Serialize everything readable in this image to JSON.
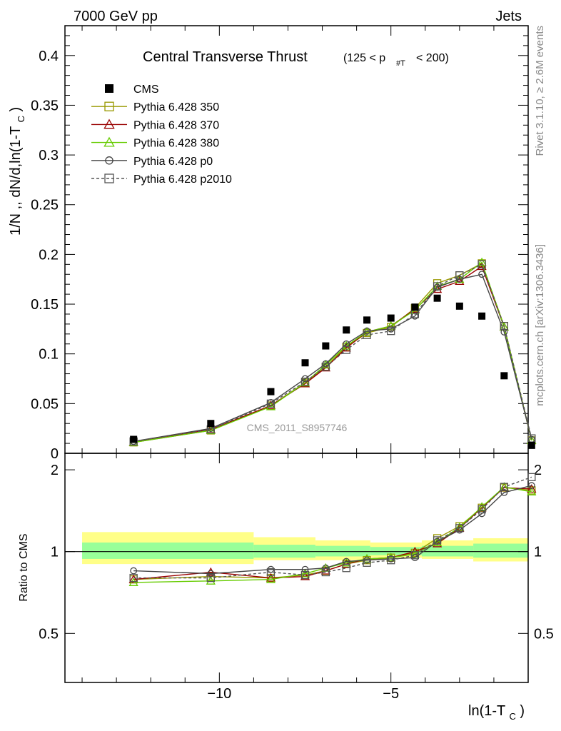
{
  "header": {
    "left": "7000 GeV pp",
    "right": "Jets"
  },
  "side_labels": {
    "rivet": "Rivet 3.1.10, ≥ 2.6M events",
    "source": "mcplots.cern.ch [arXiv:1306.3436]"
  },
  "watermark": "CMS_2011_S8957746",
  "chart_data": {
    "type": "scatter",
    "title": "Central Transverse Thrust",
    "title_cut": "(125 < p",
    "title_cut_sub": "#T",
    "title_cut_end": "< 200)",
    "ylabel_top": "1/N ,, dN/d,ln(1-T",
    "ylabel_top_sub": "C",
    "ylabel_top_end": ")",
    "ylabel_ratio": "Ratio to CMS",
    "xlabel": "ln(1-T",
    "xlabel_sub": "C",
    "xlabel_end": ")",
    "xlim": [
      -14.5,
      -1.0
    ],
    "ylim_top": [
      0,
      0.43
    ],
    "ylim_ratio": [
      0.33,
      2.3
    ],
    "x_ticks": [
      -10,
      -5
    ],
    "x_tick_labels": [
      "−10",
      "−5"
    ],
    "y_ticks_top": [
      0,
      0.05,
      0.1,
      0.15,
      0.2,
      0.25,
      0.3,
      0.35,
      0.4
    ],
    "y_tick_labels_top": [
      "0",
      "0.05",
      "0.1",
      "0.15",
      "0.2",
      "0.25",
      "0.3",
      "0.35",
      "0.4"
    ],
    "y_ticks_ratio": [
      0.5,
      1,
      2
    ],
    "y_tick_labels_ratio": [
      "0.5",
      "1",
      "2"
    ],
    "legend_position": "top-left",
    "x": [
      -12.5,
      -10.25,
      -8.5,
      -7.5,
      -6.9,
      -6.3,
      -5.7,
      -5.0,
      -4.3,
      -3.65,
      -3.0,
      -2.35,
      -1.7,
      -0.9
    ],
    "series": [
      {
        "name": "CMS",
        "marker": "filled-square",
        "color": "#000000",
        "values": [
          0.014,
          0.03,
          0.062,
          0.091,
          0.108,
          0.124,
          0.134,
          0.136,
          0.147,
          0.156,
          0.148,
          0.138,
          0.078,
          0.008
        ],
        "ratio": [
          1,
          1,
          1,
          1,
          1,
          1,
          1,
          1,
          1,
          1,
          1,
          1,
          1,
          1
        ]
      },
      {
        "name": "Pythia 6.428 350",
        "marker": "open-square",
        "color": "#999900",
        "values": [
          0.011,
          0.023,
          0.048,
          0.071,
          0.087,
          0.107,
          0.121,
          0.127,
          0.146,
          0.171,
          0.179,
          0.191,
          0.128,
          0.013
        ],
        "ratio": [
          0.79,
          0.81,
          0.8,
          0.82,
          0.85,
          0.9,
          0.93,
          0.95,
          0.99,
          1.12,
          1.24,
          1.45,
          1.72,
          1.68
        ]
      },
      {
        "name": "Pythia 6.428 370",
        "marker": "open-triangle",
        "color": "#990000",
        "values": [
          0.011,
          0.024,
          0.048,
          0.07,
          0.086,
          0.106,
          0.122,
          0.128,
          0.145,
          0.165,
          0.173,
          0.188,
          0.127,
          0.013
        ],
        "ratio": [
          0.79,
          0.84,
          0.8,
          0.81,
          0.85,
          0.9,
          0.94,
          0.95,
          1.0,
          1.07,
          1.22,
          1.45,
          1.72,
          1.7
        ]
      },
      {
        "name": "Pythia 6.428 380",
        "marker": "open-triangle",
        "color": "#66cc00",
        "values": [
          0.011,
          0.023,
          0.047,
          0.071,
          0.089,
          0.108,
          0.122,
          0.128,
          0.144,
          0.168,
          0.175,
          0.192,
          0.127,
          0.013
        ],
        "ratio": [
          0.77,
          0.78,
          0.79,
          0.83,
          0.87,
          0.91,
          0.94,
          0.95,
          0.98,
          1.08,
          1.23,
          1.46,
          1.73,
          1.66
        ]
      },
      {
        "name": "Pythia 6.428 p0",
        "marker": "open-circle",
        "color": "#444444",
        "values": [
          0.012,
          0.025,
          0.051,
          0.075,
          0.09,
          0.11,
          0.123,
          0.125,
          0.138,
          0.167,
          0.175,
          0.18,
          0.122,
          0.014
        ],
        "ratio": [
          0.85,
          0.83,
          0.86,
          0.86,
          0.87,
          0.92,
          0.93,
          0.94,
          0.95,
          1.09,
          1.2,
          1.38,
          1.65,
          1.75
        ]
      },
      {
        "name": "Pythia 6.428 p2010",
        "marker": "open-square-dashed",
        "color": "#555555",
        "values": [
          0.012,
          0.024,
          0.05,
          0.072,
          0.087,
          0.104,
          0.119,
          0.123,
          0.14,
          0.168,
          0.179,
          0.19,
          0.128,
          0.015
        ],
        "ratio": [
          0.8,
          0.8,
          0.84,
          0.82,
          0.84,
          0.87,
          0.91,
          0.93,
          0.97,
          1.1,
          1.22,
          1.43,
          1.73,
          1.88
        ]
      }
    ],
    "uncertainty_bands": {
      "edges": [
        -14.0,
        -9.0,
        -7.2,
        -5.6,
        -4.1,
        -2.6,
        -1.0
      ],
      "stat_sys_outer": [
        [
          0.9,
          1.18
        ],
        [
          0.93,
          1.13
        ],
        [
          0.93,
          1.1
        ],
        [
          0.95,
          1.08
        ],
        [
          0.94,
          1.1
        ],
        [
          0.92,
          1.12
        ]
      ],
      "stat_inner": [
        [
          0.94,
          1.08
        ],
        [
          0.95,
          1.06
        ],
        [
          0.96,
          1.05
        ],
        [
          0.97,
          1.04
        ],
        [
          0.96,
          1.05
        ],
        [
          0.95,
          1.07
        ]
      ],
      "outer_color": "#ffff88",
      "inner_color": "#99ff99"
    }
  }
}
